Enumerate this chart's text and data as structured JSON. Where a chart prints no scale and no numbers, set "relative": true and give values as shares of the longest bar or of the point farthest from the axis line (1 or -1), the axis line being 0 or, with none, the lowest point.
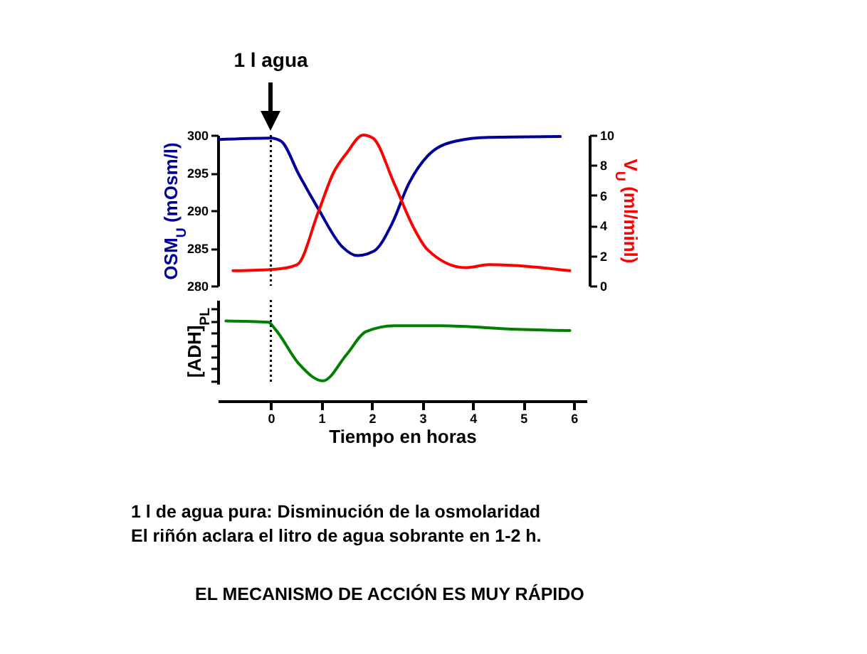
{
  "chart_data": [
    {
      "type": "line",
      "xlim": [
        -1.05,
        6.25
      ],
      "ylim": [
        280,
        300
      ],
      "yticks": [
        280,
        285,
        290,
        295,
        300
      ],
      "y2lim": [
        0,
        10
      ],
      "y2ticks": [
        0,
        2,
        4,
        6,
        8,
        10
      ],
      "ylabel": "OSM$_{U}$ (mOsm/l)",
      "y2label": "V$_{U}$ (ml/minl)",
      "tick_labels": "y",
      "grid": false,
      "series": [
        {
          "color": "#000099",
          "x": [
            -1.03,
            0,
            0.2,
            0.56,
            0.94,
            1.41,
            1.71,
            2.04,
            2.41,
            2.72,
            3.1,
            3.66,
            4.31,
            5.73
          ],
          "values": [
            299.4,
            299.6,
            299.2,
            294.7,
            290.2,
            285.2,
            284.0,
            284.6,
            288.4,
            293.4,
            297.2,
            299.2,
            299.7,
            299.8
          ]
        },
        {
          "color": "#ff0000",
          "axis": "y2",
          "x": [
            -0.75,
            0.09,
            0.52,
            0.94,
            1.24,
            1.5,
            1.83,
            2.02,
            2.44,
            2.82,
            3.1,
            3.85,
            4.32,
            5.92
          ],
          "values": [
            1.0,
            1.1,
            1.4,
            4.9,
            7.5,
            8.8,
            10.0,
            9.8,
            6.8,
            3.9,
            2.4,
            1.2,
            1.4,
            1.0
          ]
        }
      ],
      "ref_lines": [
        {
          "axis": "x",
          "value": 0,
          "label": "1 l agua",
          "line_style": "dotted"
        }
      ]
    },
    {
      "type": "line",
      "relative": true,
      "xlim": [
        -1.05,
        6.25
      ],
      "xticks": [
        0,
        1,
        2,
        3,
        4,
        5,
        6
      ],
      "xlabel": "Tiempo en horas",
      "ylabel": "[ADH]$_{PL}$",
      "tick_labels": "x",
      "grid": false,
      "series": [
        {
          "color": "#008000",
          "x": [
            -0.89,
            -0.05,
            0.09,
            0.56,
            1.03,
            1.5,
            1.88,
            2.44,
            3.38,
            4.88,
            5.92
          ],
          "values": [
            1.0,
            0.98,
            0.86,
            0.28,
            0,
            0.44,
            0.82,
            0.92,
            0.92,
            0.86,
            0.84
          ]
        }
      ],
      "ref_lines": [
        {
          "axis": "x",
          "value": 0,
          "line_style": "dotted"
        }
      ],
      "annotations": [
        "1 l de agua pura: Disminución de la osmolaridad",
        "El riñón aclara el litro de agua sobrante en 1-2 h.",
        "EL MECANISMO DE ACCIÓN ES MUY RÁPIDO"
      ]
    }
  ]
}
